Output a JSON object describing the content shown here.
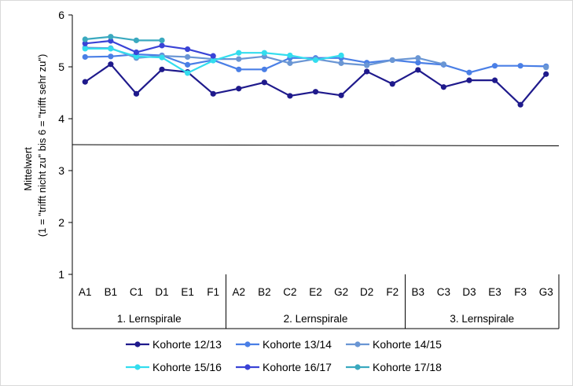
{
  "chart_data": {
    "type": "line",
    "ylabel_line1": "Mittelwert",
    "ylabel_line2": "(1 = \"trifft nicht zu\" bis 6 = \"trifft sehr zu\")",
    "ylim": [
      1,
      6
    ],
    "yticks": [
      1,
      2,
      3,
      4,
      5,
      6
    ],
    "reference_line": 3.5,
    "categories": [
      "A1",
      "B1",
      "C1",
      "D1",
      "E1",
      "F1",
      "A2",
      "B2",
      "C2",
      "E2",
      "G2",
      "D2",
      "F2",
      "B3",
      "C3",
      "D3",
      "E3",
      "F3",
      "G3"
    ],
    "groups": [
      {
        "label": "1. Lernspirale",
        "start": 0,
        "end": 5
      },
      {
        "label": "2. Lernspirale",
        "start": 6,
        "end": 12
      },
      {
        "label": "3. Lernspirale",
        "start": 13,
        "end": 18
      }
    ],
    "series": [
      {
        "name": "Kohorte 12/13",
        "color": "#1f1a8c",
        "values": [
          4.71,
          5.05,
          4.48,
          4.95,
          4.9,
          4.48,
          4.58,
          4.7,
          4.44,
          4.52,
          4.45,
          4.91,
          4.67,
          4.94,
          4.61,
          4.74,
          4.74,
          4.27,
          4.86
        ]
      },
      {
        "name": "Kohorte 13/14",
        "color": "#4a7fe6",
        "values": [
          5.19,
          5.2,
          5.24,
          5.22,
          5.04,
          5.13,
          4.95,
          4.95,
          5.17,
          5.17,
          5.17,
          5.08,
          5.13,
          5.08,
          5.04,
          4.89,
          5.02,
          5.02,
          5.01
        ]
      },
      {
        "name": "Kohorte 14/15",
        "color": "#6a96d4",
        "values": [
          5.37,
          5.36,
          5.17,
          5.21,
          5.19,
          5.15,
          5.15,
          5.2,
          5.07,
          5.15,
          5.07,
          5.03,
          5.13,
          5.17,
          5.05,
          null,
          null,
          null,
          4.99
        ]
      },
      {
        "name": "Kohorte 15/16",
        "color": "#33ddee",
        "values": [
          5.35,
          5.35,
          5.2,
          5.18,
          4.88,
          5.12,
          5.27,
          5.27,
          5.22,
          5.13,
          5.22,
          null,
          null,
          null,
          null,
          null,
          null,
          null,
          null
        ]
      },
      {
        "name": "Kohorte 16/17",
        "color": "#3a43d6",
        "values": [
          5.45,
          5.5,
          5.28,
          5.41,
          5.34,
          5.21,
          null,
          null,
          null,
          null,
          null,
          null,
          null,
          null,
          null,
          null,
          null,
          null,
          null
        ]
      },
      {
        "name": "Kohorte 17/18",
        "color": "#3aa9bf",
        "values": [
          5.53,
          5.58,
          5.51,
          5.51,
          null,
          null,
          null,
          null,
          null,
          null,
          null,
          null,
          null,
          null,
          null,
          null,
          null,
          null,
          null
        ]
      }
    ]
  }
}
